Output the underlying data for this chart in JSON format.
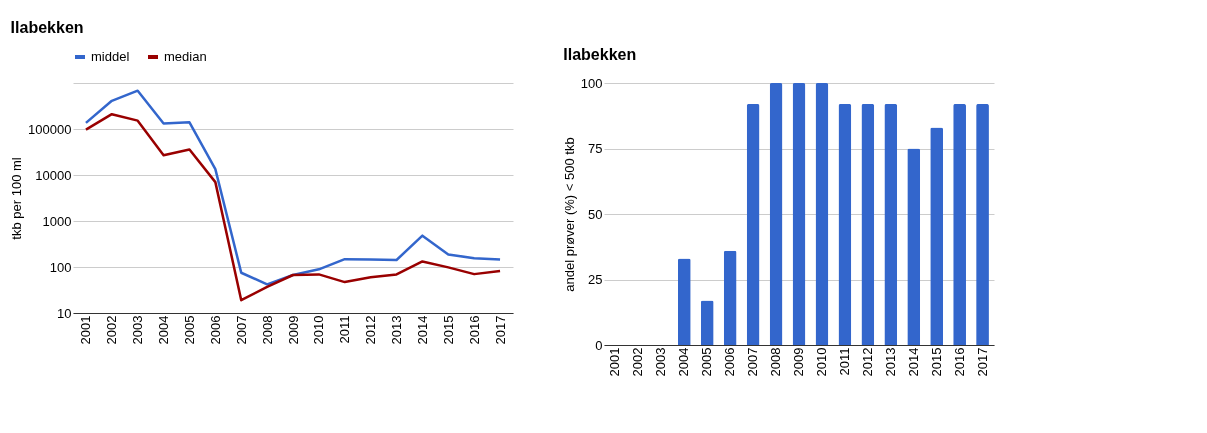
{
  "chart_data": [
    {
      "type": "line",
      "title": "Ilabekken",
      "ylabel": "tkb per 100 ml",
      "categories": [
        "2001",
        "2002",
        "2003",
        "2004",
        "2005",
        "2006",
        "2007",
        "2008",
        "2009",
        "2010",
        "2011",
        "2012",
        "2013",
        "2014",
        "2015",
        "2016",
        "2017"
      ],
      "series": [
        {
          "name": "middel",
          "color": "#3366cc",
          "values": [
            136000,
            410000,
            680000,
            132000,
            140000,
            13400,
            75,
            42,
            67,
            89,
            148,
            145,
            142,
            480,
            188,
            155,
            145
          ]
        },
        {
          "name": "median",
          "color": "#990000",
          "values": [
            97000,
            210000,
            152000,
            27000,
            36000,
            7000,
            19,
            37,
            67,
            69,
            47,
            60,
            69,
            132,
            98,
            70,
            82
          ]
        }
      ],
      "log": "y",
      "ylim": [
        10,
        1000000
      ],
      "yticks": [
        10,
        100,
        {
          "value": 1000,
          "label": "1000"
        },
        {
          "value": 10000,
          "label": "10000"
        },
        {
          "value": 100000,
          "label": "100000"
        },
        {
          "value": 1000000,
          "label": null
        }
      ],
      "grid": "y",
      "legend": "top",
      "marker": "none",
      "line_style": "solid"
    },
    {
      "type": "bar",
      "title": "Ilabekken",
      "ylabel": "andel prøver (%) < 500 tkb",
      "categories": [
        "2001",
        "2002",
        "2003",
        "2004",
        "2005",
        "2006",
        "2007",
        "2008",
        "2009",
        "2010",
        "2011",
        "2012",
        "2013",
        "2014",
        "2015",
        "2016",
        "2017"
      ],
      "values": [
        0,
        0,
        0,
        33,
        17,
        36,
        92,
        100,
        100,
        100,
        92,
        92,
        92,
        75,
        83,
        92,
        92
      ],
      "color": "#3366cc",
      "ylim": [
        0,
        100
      ],
      "yticks": [
        0,
        25,
        50,
        75,
        100
      ],
      "grid": "y"
    }
  ]
}
